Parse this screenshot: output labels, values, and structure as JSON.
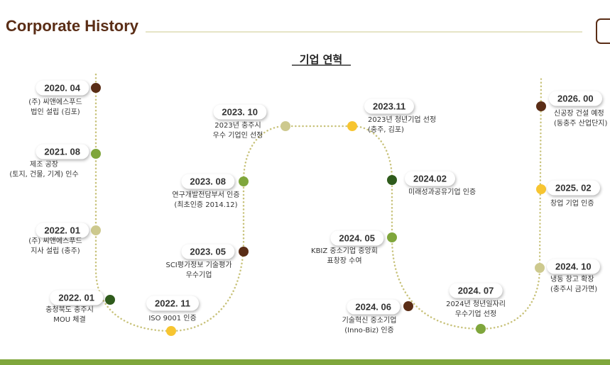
{
  "header": {
    "title": "Corporate History"
  },
  "subtitle": "기업 연혁",
  "events": [
    {
      "date": "2020. 04",
      "description": [
        "(주) 씨앤에스푸드",
        "법인 설립 (김포)"
      ],
      "color": "#5a2d16"
    },
    {
      "date": "2021. 08",
      "description": [
        "제조 공장",
        "(토지, 건물, 기계) 인수"
      ],
      "color": "#7fa63c"
    },
    {
      "date": "2022. 01",
      "description": [
        "(주) 씨앤에스푸드",
        "지사 설립 (충주)"
      ],
      "color": "#cdc98e"
    },
    {
      "date": "2022. 01",
      "description": [
        "충청북도 충주시",
        "MOU 체결"
      ],
      "color": "#2f5b1c"
    },
    {
      "date": "2022. 11",
      "description": [
        "ISO 9001 인증"
      ],
      "color": "#f7c531"
    },
    {
      "date": "2023. 05",
      "description": [
        "SCI평가정보 기술평가",
        "우수기업"
      ],
      "color": "#5a2d16"
    },
    {
      "date": "2023. 08",
      "description": [
        "연구개발전담부서 인증",
        "(최초인증 2014.12)"
      ],
      "color": "#7fa63c"
    },
    {
      "date": "2023. 10",
      "description": [
        "2023년 충주시",
        "우수 기업인 선정"
      ],
      "color": "#cdc98e"
    },
    {
      "date": "2023.11",
      "description": [
        "2023년 청년기업 선정",
        "(충주, 김포)"
      ],
      "color": "#f7c531"
    },
    {
      "date": "2024.02",
      "description": [
        "미래성과공유기업 인증"
      ],
      "color": "#2f5b1c"
    },
    {
      "date": "2024. 05",
      "description": [
        "KBIZ 중소기업 중앙회",
        "표창장 수여"
      ],
      "color": "#7fa63c"
    },
    {
      "date": "2024. 06",
      "description": [
        "기술혁신 중소기업",
        "(Inno-Biz) 인증"
      ],
      "color": "#5a2d16"
    },
    {
      "date": "2024. 07",
      "description": [
        "2024년 청년일자리",
        "우수기업 선정"
      ],
      "color": "#7fa63c"
    },
    {
      "date": "2024. 10",
      "description": [
        "냉동 창고 확장",
        "(충주시 금가면)"
      ],
      "color": "#cdc98e"
    },
    {
      "date": "2025. 02",
      "description": [
        "창업 기업 인증"
      ],
      "color": "#f7c531"
    },
    {
      "date": "2026. 00",
      "description": [
        "신공장 건설 예정",
        "(동충주 산업단지)"
      ],
      "color": "#5a2d16"
    }
  ]
}
